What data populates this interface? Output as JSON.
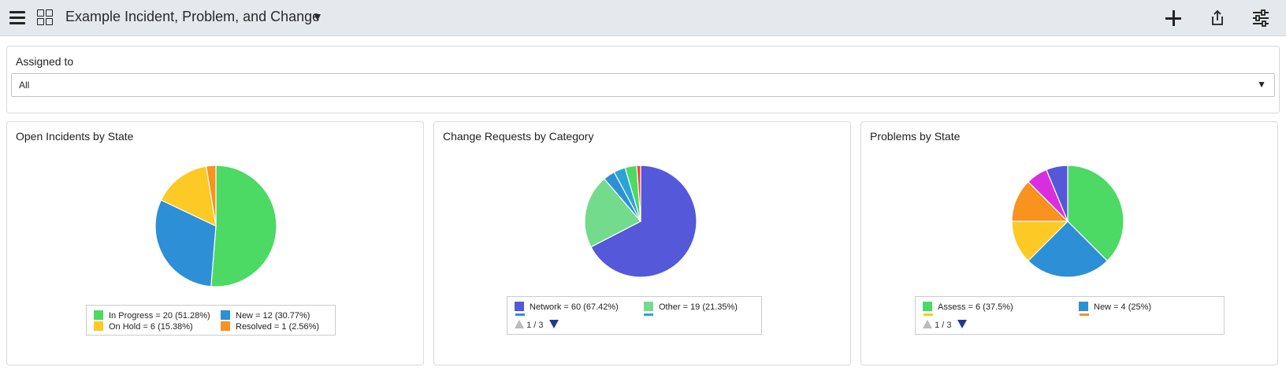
{
  "header": {
    "title": "Example Incident, Problem, and Change",
    "title_caret": "▼"
  },
  "filter": {
    "label": "Assigned to",
    "value": "All",
    "caret": "▼"
  },
  "chart_data": [
    {
      "type": "pie",
      "title": "Open Incidents by State",
      "slices": [
        {
          "label": "In Progress",
          "value": 20,
          "percent": "51.28%",
          "color": "#4cd964"
        },
        {
          "label": "New",
          "value": 12,
          "percent": "30.77%",
          "color": "#2d8fd5"
        },
        {
          "label": "On Hold",
          "value": 6,
          "percent": "15.38%",
          "color": "#fcc925"
        },
        {
          "label": "Resolved",
          "value": 1,
          "percent": "2.56%",
          "color": "#f7931e"
        }
      ],
      "legend": {
        "visible": [
          "In Progress = 20 (51.28%)",
          "New = 12 (30.77%)",
          "On Hold = 6 (15.38%)",
          "Resolved = 1 (2.56%)"
        ]
      }
    },
    {
      "type": "pie",
      "title": "Change Requests by Category",
      "slices": [
        {
          "value": 60,
          "color": "#5558d9"
        },
        {
          "value": 19,
          "color": "#73dc8c"
        },
        {
          "value": 3,
          "color": "#2d8fd5"
        },
        {
          "value": 3,
          "color": "#2aa4d5"
        },
        {
          "value": 3,
          "color": "#4cd964"
        },
        {
          "value": 1,
          "color": "#e8453c"
        }
      ],
      "legend": {
        "visible": [
          "Network = 60 (67.42%)",
          "Other = 19 (21.35%)"
        ],
        "page": "1 / 3"
      }
    },
    {
      "type": "pie",
      "title": "Problems by State",
      "slices": [
        {
          "value": 6,
          "color": "#4cd964"
        },
        {
          "value": 4,
          "color": "#2d8fd5"
        },
        {
          "value": 2,
          "color": "#fcc925"
        },
        {
          "value": 2,
          "color": "#f7931e"
        },
        {
          "value": 1,
          "color": "#d92ee0"
        },
        {
          "value": 1,
          "color": "#5558d9"
        }
      ],
      "legend": {
        "visible": [
          "Assess = 6 (37.5%)",
          "New = 4 (25%)"
        ],
        "page": "1 / 3"
      }
    }
  ]
}
